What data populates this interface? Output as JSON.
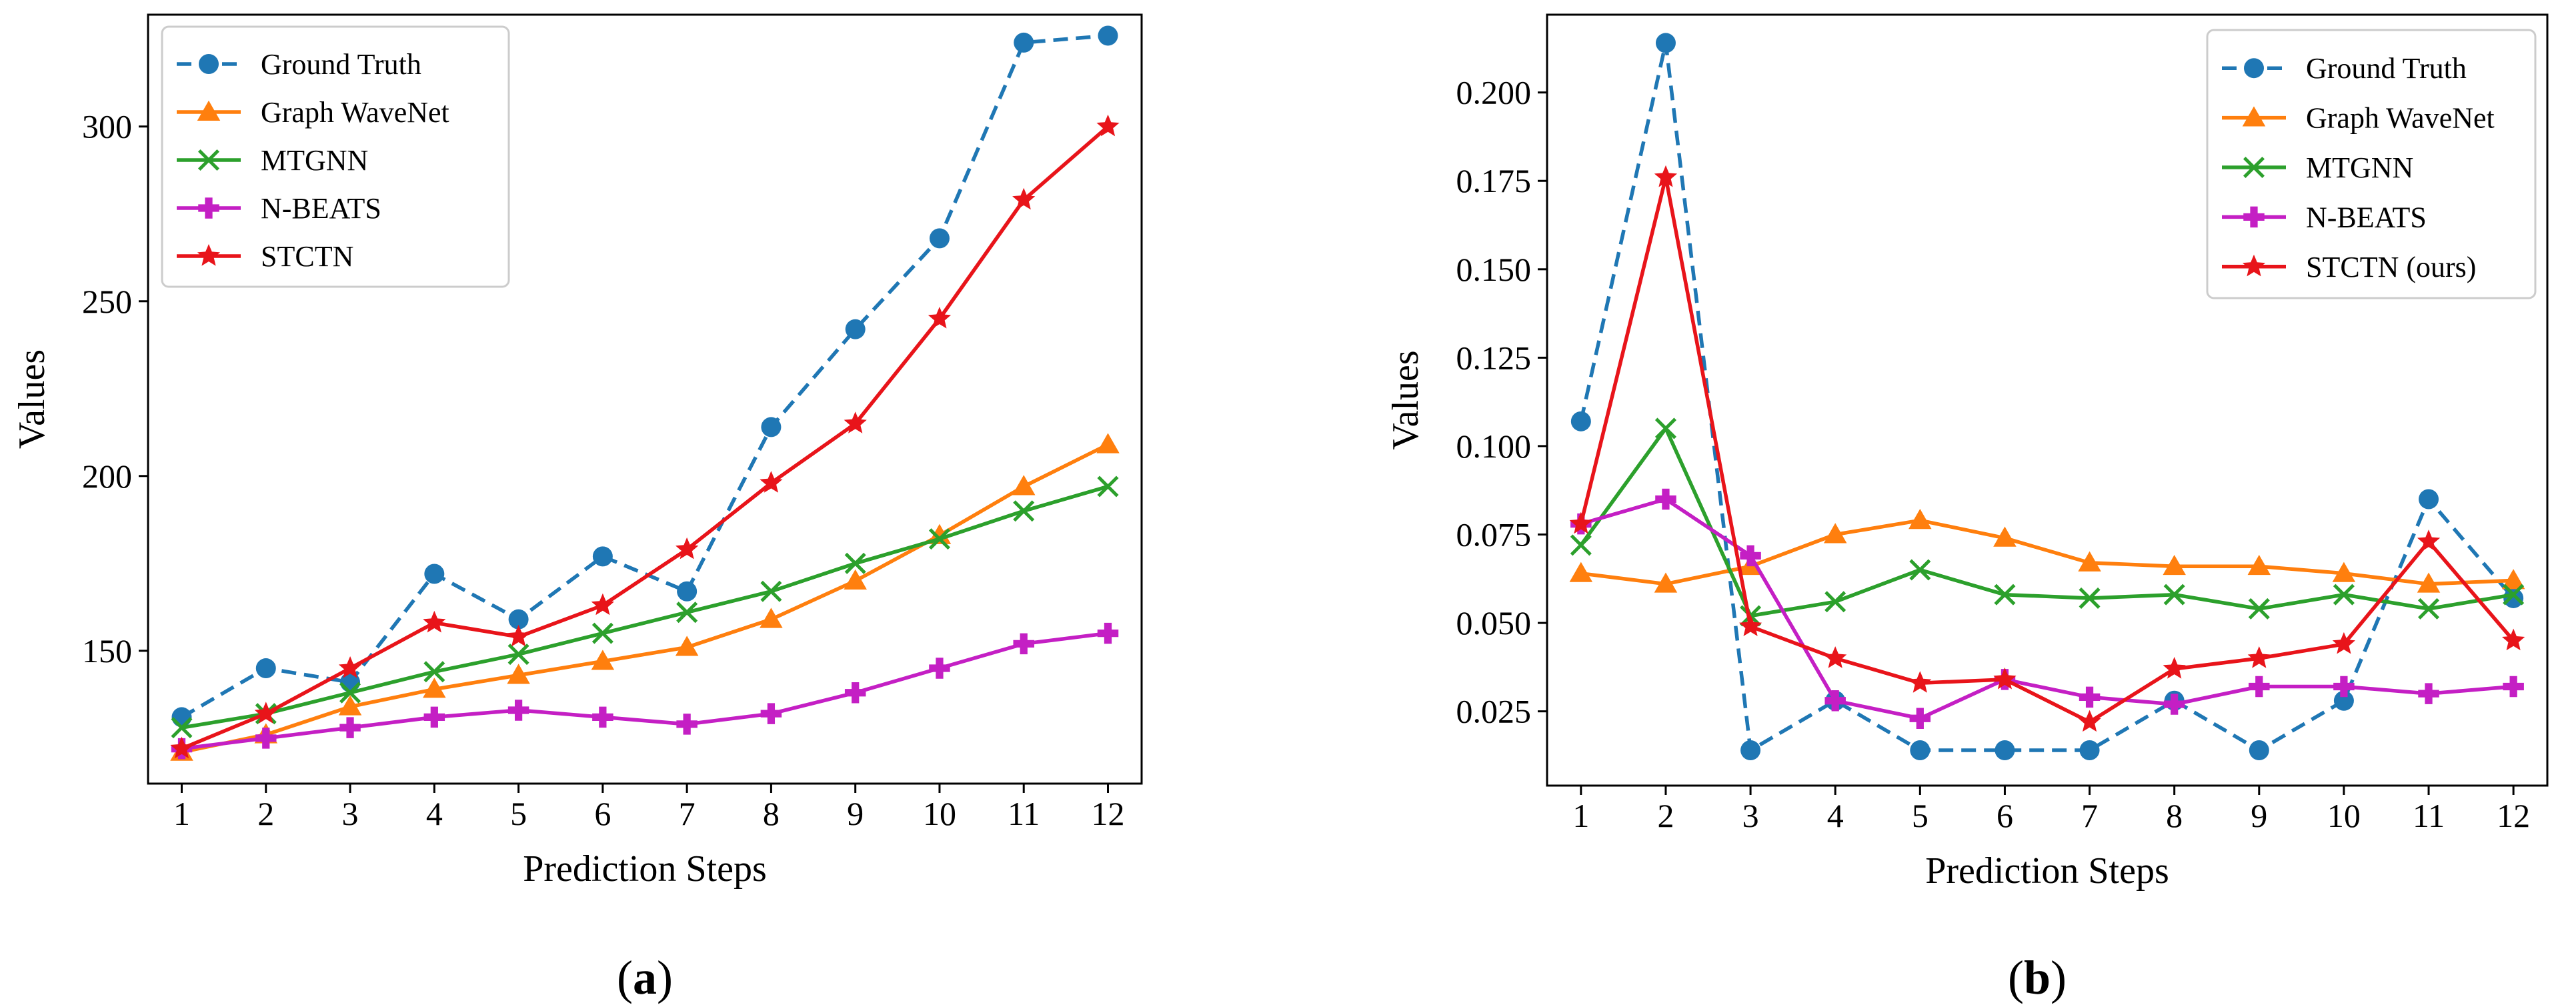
{
  "chart_data": [
    {
      "type": "line",
      "panel": "a",
      "caption": [
        "(",
        "a",
        ")"
      ],
      "title": "",
      "xlabel": "Prediction Steps",
      "ylabel": "Values",
      "xlim": [
        0.6,
        12.4
      ],
      "ylim": [
        112,
        332
      ],
      "xticks": [
        1,
        2,
        3,
        4,
        5,
        6,
        7,
        8,
        9,
        10,
        11,
        12
      ],
      "yticks": [
        150,
        200,
        250,
        300
      ],
      "legend_position": "upper-left",
      "series": [
        {
          "name": "Ground Truth",
          "color": "#1f77b4",
          "marker": "circle",
          "dashed": true,
          "values": [
            131,
            145,
            141,
            172,
            159,
            177,
            167,
            214,
            242,
            268,
            324,
            326
          ]
        },
        {
          "name": "Graph WaveNet",
          "color": "#ff7f0e",
          "marker": "triangle",
          "dashed": false,
          "values": [
            121,
            126,
            134,
            139,
            143,
            147,
            151,
            159,
            170,
            183,
            197,
            209
          ]
        },
        {
          "name": "MTGNN",
          "color": "#2ca02c",
          "marker": "x",
          "dashed": false,
          "values": [
            128,
            132,
            138,
            144,
            149,
            155,
            161,
            167,
            175,
            182,
            190,
            197
          ]
        },
        {
          "name": "N-BEATS",
          "color": "#c41fc4",
          "marker": "plus",
          "dashed": false,
          "values": [
            122,
            125,
            128,
            131,
            133,
            131,
            129,
            132,
            138,
            145,
            152,
            155
          ]
        },
        {
          "name": "STCTN",
          "color": "#e8141a",
          "marker": "star",
          "dashed": false,
          "values": [
            122,
            132,
            145,
            158,
            154,
            163,
            179,
            198,
            215,
            245,
            279,
            300
          ]
        }
      ]
    },
    {
      "type": "line",
      "panel": "b",
      "caption": [
        "(",
        "b",
        ")"
      ],
      "title": "",
      "xlabel": "Prediction Steps",
      "ylabel": "Values",
      "xlim": [
        0.6,
        12.4
      ],
      "ylim": [
        0.004,
        0.222
      ],
      "xticks": [
        1,
        2,
        3,
        4,
        5,
        6,
        7,
        8,
        9,
        10,
        11,
        12
      ],
      "yticks": [
        "0.025",
        "0.050",
        "0.075",
        "0.100",
        "0.125",
        "0.150",
        "0.175",
        "0.200"
      ],
      "legend_position": "upper-right",
      "series": [
        {
          "name": "Ground Truth",
          "color": "#1f77b4",
          "marker": "circle",
          "dashed": true,
          "values": [
            0.107,
            0.214,
            0.014,
            0.028,
            0.014,
            0.014,
            0.014,
            0.028,
            0.014,
            0.028,
            0.085,
            0.057
          ]
        },
        {
          "name": "Graph WaveNet",
          "color": "#ff7f0e",
          "marker": "triangle",
          "dashed": false,
          "values": [
            0.064,
            0.061,
            0.066,
            0.075,
            0.079,
            0.074,
            0.067,
            0.066,
            0.066,
            0.064,
            0.061,
            0.062
          ]
        },
        {
          "name": "MTGNN",
          "color": "#2ca02c",
          "marker": "x",
          "dashed": false,
          "values": [
            0.072,
            0.105,
            0.052,
            0.056,
            0.065,
            0.058,
            0.057,
            0.058,
            0.054,
            0.058,
            0.054,
            0.058
          ]
        },
        {
          "name": "N-BEATS",
          "color": "#c41fc4",
          "marker": "plus",
          "dashed": false,
          "values": [
            0.078,
            0.085,
            0.069,
            0.028,
            0.023,
            0.034,
            0.029,
            0.027,
            0.032,
            0.032,
            0.03,
            0.032
          ]
        },
        {
          "name": "STCTN (ours)",
          "color": "#e8141a",
          "marker": "star",
          "dashed": false,
          "values": [
            0.078,
            0.176,
            0.049,
            0.04,
            0.033,
            0.034,
            0.022,
            0.037,
            0.04,
            0.044,
            0.073,
            0.045
          ]
        }
      ]
    }
  ]
}
